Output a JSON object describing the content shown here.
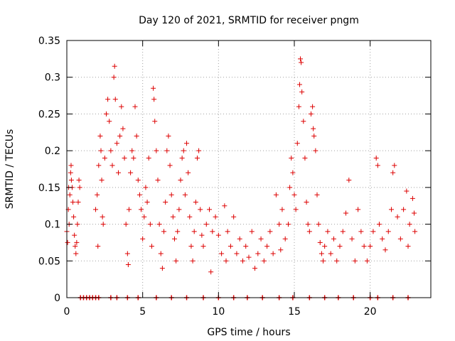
{
  "chart_data": {
    "type": "scatter",
    "title": "Day 120 of 2021, SRMTID for receiver pngm",
    "xlabel": "GPS time / hours",
    "ylabel": "SRMTID / TECUs",
    "xlim": [
      0,
      24
    ],
    "ylim": [
      0,
      0.35
    ],
    "xticks": [
      0,
      5,
      10,
      15,
      20
    ],
    "xtick_labels": [
      "0",
      "5",
      "10",
      "15",
      "20"
    ],
    "yticks": [
      0,
      0.05,
      0.1,
      0.15,
      0.2,
      0.25,
      0.3,
      0.35
    ],
    "ytick_labels": [
      "0",
      "0.05",
      "0.1",
      "0.15",
      "0.2",
      "0.25",
      "0.3",
      "0.35"
    ],
    "grid": true,
    "marker": "+",
    "color": "#dd0000",
    "series": [
      {
        "name": "SRMTID",
        "points": [
          [
            0.0,
            0.09
          ],
          [
            0.05,
            0.075
          ],
          [
            0.1,
            0.12
          ],
          [
            0.12,
            0.15
          ],
          [
            0.15,
            0.1
          ],
          [
            0.2,
            0.14
          ],
          [
            0.25,
            0.17
          ],
          [
            0.28,
            0.18
          ],
          [
            0.3,
            0.16
          ],
          [
            0.35,
            0.15
          ],
          [
            0.4,
            0.13
          ],
          [
            0.45,
            0.11
          ],
          [
            0.5,
            0.085
          ],
          [
            0.55,
            0.07
          ],
          [
            0.6,
            0.06
          ],
          [
            0.65,
            0.075
          ],
          [
            0.7,
            0.1
          ],
          [
            0.75,
            0.13
          ],
          [
            0.8,
            0.16
          ],
          [
            0.85,
            0.15
          ],
          [
            1.9,
            0.12
          ],
          [
            2.0,
            0.14
          ],
          [
            2.05,
            0.07
          ],
          [
            2.1,
            0.18
          ],
          [
            2.2,
            0.22
          ],
          [
            2.25,
            0.2
          ],
          [
            2.3,
            0.16
          ],
          [
            2.35,
            0.11
          ],
          [
            2.4,
            0.1
          ],
          [
            2.5,
            0.19
          ],
          [
            2.6,
            0.25
          ],
          [
            2.7,
            0.27
          ],
          [
            2.8,
            0.24
          ],
          [
            2.9,
            0.2
          ],
          [
            3.0,
            0.18
          ],
          [
            3.1,
            0.3
          ],
          [
            3.15,
            0.315
          ],
          [
            3.2,
            0.27
          ],
          [
            3.3,
            0.21
          ],
          [
            3.4,
            0.17
          ],
          [
            3.5,
            0.22
          ],
          [
            3.6,
            0.26
          ],
          [
            3.7,
            0.23
          ],
          [
            3.8,
            0.19
          ],
          [
            3.9,
            0.1
          ],
          [
            4.0,
            0.06
          ],
          [
            4.05,
            0.045
          ],
          [
            4.1,
            0.12
          ],
          [
            4.2,
            0.17
          ],
          [
            4.3,
            0.2
          ],
          [
            4.4,
            0.19
          ],
          [
            4.5,
            0.26
          ],
          [
            4.6,
            0.22
          ],
          [
            4.7,
            0.16
          ],
          [
            4.8,
            0.14
          ],
          [
            4.9,
            0.12
          ],
          [
            5.0,
            0.08
          ],
          [
            5.1,
            0.11
          ],
          [
            5.2,
            0.15
          ],
          [
            5.3,
            0.13
          ],
          [
            5.4,
            0.19
          ],
          [
            5.5,
            0.1
          ],
          [
            5.6,
            0.07
          ],
          [
            5.7,
            0.285
          ],
          [
            5.75,
            0.27
          ],
          [
            5.8,
            0.24
          ],
          [
            5.9,
            0.2
          ],
          [
            6.0,
            0.16
          ],
          [
            6.1,
            0.1
          ],
          [
            6.2,
            0.06
          ],
          [
            6.3,
            0.04
          ],
          [
            6.4,
            0.09
          ],
          [
            6.5,
            0.13
          ],
          [
            6.6,
            0.2
          ],
          [
            6.7,
            0.22
          ],
          [
            6.8,
            0.18
          ],
          [
            6.9,
            0.14
          ],
          [
            7.0,
            0.11
          ],
          [
            7.1,
            0.08
          ],
          [
            7.2,
            0.05
          ],
          [
            7.3,
            0.09
          ],
          [
            7.4,
            0.12
          ],
          [
            7.5,
            0.16
          ],
          [
            7.6,
            0.19
          ],
          [
            7.7,
            0.2
          ],
          [
            7.8,
            0.14
          ],
          [
            7.9,
            0.21
          ],
          [
            8.0,
            0.17
          ],
          [
            8.1,
            0.11
          ],
          [
            8.2,
            0.07
          ],
          [
            8.3,
            0.05
          ],
          [
            8.4,
            0.09
          ],
          [
            8.5,
            0.13
          ],
          [
            8.6,
            0.19
          ],
          [
            8.7,
            0.2
          ],
          [
            8.8,
            0.12
          ],
          [
            8.9,
            0.085
          ],
          [
            9.0,
            0.07
          ],
          [
            9.2,
            0.1
          ],
          [
            9.4,
            0.12
          ],
          [
            9.5,
            0.035
          ],
          [
            9.6,
            0.09
          ],
          [
            9.8,
            0.11
          ],
          [
            10.0,
            0.085
          ],
          [
            10.2,
            0.06
          ],
          [
            10.4,
            0.125
          ],
          [
            10.5,
            0.05
          ],
          [
            10.6,
            0.09
          ],
          [
            10.8,
            0.07
          ],
          [
            11.0,
            0.11
          ],
          [
            11.2,
            0.06
          ],
          [
            11.4,
            0.08
          ],
          [
            11.6,
            0.05
          ],
          [
            11.8,
            0.07
          ],
          [
            12.0,
            0.055
          ],
          [
            12.2,
            0.09
          ],
          [
            12.4,
            0.04
          ],
          [
            12.6,
            0.06
          ],
          [
            12.8,
            0.08
          ],
          [
            13.0,
            0.05
          ],
          [
            13.2,
            0.07
          ],
          [
            13.4,
            0.09
          ],
          [
            13.6,
            0.06
          ],
          [
            13.8,
            0.14
          ],
          [
            14.0,
            0.1
          ],
          [
            14.1,
            0.065
          ],
          [
            14.2,
            0.12
          ],
          [
            14.4,
            0.08
          ],
          [
            14.6,
            0.1
          ],
          [
            14.7,
            0.15
          ],
          [
            14.8,
            0.19
          ],
          [
            14.9,
            0.17
          ],
          [
            15.0,
            0.14
          ],
          [
            15.1,
            0.12
          ],
          [
            15.2,
            0.21
          ],
          [
            15.3,
            0.26
          ],
          [
            15.35,
            0.29
          ],
          [
            15.4,
            0.325
          ],
          [
            15.45,
            0.32
          ],
          [
            15.5,
            0.28
          ],
          [
            15.6,
            0.24
          ],
          [
            15.7,
            0.19
          ],
          [
            15.8,
            0.13
          ],
          [
            15.9,
            0.1
          ],
          [
            16.0,
            0.09
          ],
          [
            16.1,
            0.25
          ],
          [
            16.2,
            0.26
          ],
          [
            16.25,
            0.23
          ],
          [
            16.3,
            0.22
          ],
          [
            16.4,
            0.2
          ],
          [
            16.5,
            0.14
          ],
          [
            16.6,
            0.1
          ],
          [
            16.7,
            0.075
          ],
          [
            16.8,
            0.06
          ],
          [
            16.9,
            0.05
          ],
          [
            17.0,
            0.07
          ],
          [
            17.2,
            0.09
          ],
          [
            17.4,
            0.06
          ],
          [
            17.6,
            0.08
          ],
          [
            17.8,
            0.05
          ],
          [
            18.0,
            0.07
          ],
          [
            18.2,
            0.09
          ],
          [
            18.4,
            0.115
          ],
          [
            18.6,
            0.16
          ],
          [
            18.8,
            0.08
          ],
          [
            19.0,
            0.05
          ],
          [
            19.2,
            0.12
          ],
          [
            19.4,
            0.09
          ],
          [
            19.6,
            0.07
          ],
          [
            19.8,
            0.05
          ],
          [
            20.0,
            0.07
          ],
          [
            20.2,
            0.09
          ],
          [
            20.4,
            0.19
          ],
          [
            20.5,
            0.18
          ],
          [
            20.6,
            0.1
          ],
          [
            20.8,
            0.08
          ],
          [
            21.0,
            0.065
          ],
          [
            21.2,
            0.09
          ],
          [
            21.4,
            0.12
          ],
          [
            21.5,
            0.17
          ],
          [
            21.6,
            0.18
          ],
          [
            21.8,
            0.11
          ],
          [
            22.0,
            0.08
          ],
          [
            22.2,
            0.12
          ],
          [
            22.4,
            0.145
          ],
          [
            22.5,
            0.07
          ],
          [
            22.6,
            0.1
          ],
          [
            22.8,
            0.135
          ],
          [
            22.9,
            0.115
          ],
          [
            22.95,
            0.09
          ]
        ]
      }
    ],
    "zero_markers_x": [
      0.9,
      1.1,
      1.3,
      1.5,
      1.7,
      1.9,
      2.1,
      2.9,
      3.3,
      4.0,
      4.7,
      5.9,
      6.9,
      7.9,
      9.0,
      10.0,
      11.0,
      11.9,
      12.9,
      14.0,
      14.9,
      16.0,
      17.0,
      17.9,
      18.9,
      20.0,
      20.5,
      21.5,
      22.5
    ]
  }
}
